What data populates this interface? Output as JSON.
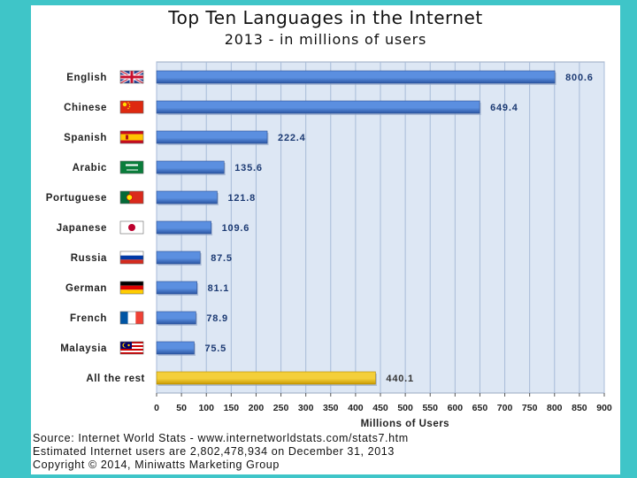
{
  "title": "Top Ten Languages in the Internet",
  "subtitle": "2013 - in millions of users",
  "chart_data": {
    "type": "bar",
    "orientation": "horizontal",
    "categories": [
      "English",
      "Chinese",
      "Spanish",
      "Arabic",
      "Portuguese",
      "Japanese",
      "Russia",
      "German",
      "French",
      "Malaysia",
      "All the rest"
    ],
    "values": [
      800.6,
      649.4,
      222.4,
      135.6,
      121.8,
      109.6,
      87.5,
      81.1,
      78.9,
      75.5,
      440.1
    ],
    "value_labels": [
      "800.6",
      "649.4",
      "222.4",
      "135.6",
      "121.8",
      "109.6",
      "87.5",
      "81.1",
      "78.9",
      "75.5",
      "440.1"
    ],
    "xlabel": "Millions of Users",
    "xlim": [
      0,
      900
    ],
    "xticks": [
      0,
      50,
      100,
      150,
      200,
      250,
      300,
      350,
      400,
      450,
      500,
      550,
      600,
      650,
      700,
      750,
      800,
      850,
      900
    ],
    "grid": true,
    "colors": {
      "bar": "#3a6fc4",
      "bar_dark": "#2a56a3",
      "highlight": "#e8b90c",
      "highlight_dark": "#c99a00",
      "plot_bg": "#dde7f4",
      "grid": "#a8bbd8"
    },
    "flags": [
      "uk-flag",
      "china-flag",
      "spain-flag",
      "saudi-flag",
      "portugal-flag",
      "japan-flag",
      "russia-flag",
      "germany-flag",
      "france-flag",
      "malaysia-flag",
      "none"
    ]
  },
  "source": {
    "line1": "Source: Internet World Stats - www.internetworldstats.com/stats7.htm",
    "line2": "Estimated Internet users are 2,802,478,934 on December 31, 2013",
    "line3": "Copyright © 2014, Miniwatts Marketing Group"
  }
}
